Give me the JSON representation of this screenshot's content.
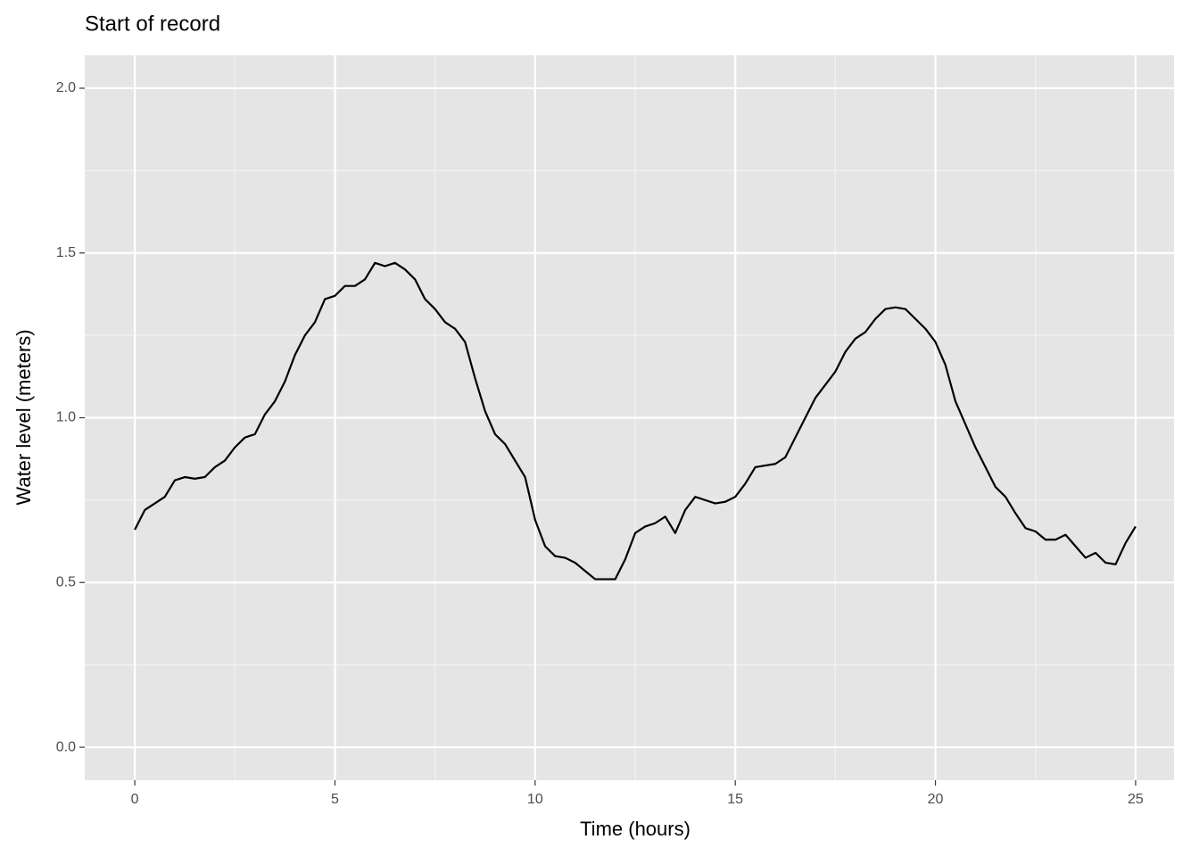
{
  "chart_data": {
    "type": "line",
    "title": "Start of record",
    "x_label": "Time (hours)",
    "y_label": "Water level (meters)",
    "x": [
      0,
      0.25,
      0.5,
      0.75,
      1,
      1.25,
      1.5,
      1.75,
      2,
      2.25,
      2.5,
      2.75,
      3,
      3.25,
      3.5,
      3.75,
      4,
      4.25,
      4.5,
      4.75,
      5,
      5.25,
      5.5,
      5.75,
      6,
      6.25,
      6.5,
      6.75,
      7,
      7.25,
      7.5,
      7.75,
      8,
      8.25,
      8.5,
      8.75,
      9,
      9.25,
      9.5,
      9.75,
      10,
      10.25,
      10.5,
      10.75,
      11,
      11.25,
      11.5,
      11.75,
      12,
      12.25,
      12.5,
      12.75,
      13,
      13.25,
      13.5,
      13.75,
      14,
      14.25,
      14.5,
      14.75,
      15,
      15.25,
      15.5,
      15.75,
      16,
      16.25,
      16.5,
      16.75,
      17,
      17.25,
      17.5,
      17.75,
      18,
      18.25,
      18.5,
      18.75,
      19,
      19.25,
      19.5,
      19.75,
      20,
      20.25,
      20.5,
      20.75,
      21,
      21.25,
      21.5,
      21.75,
      22,
      22.25,
      22.5,
      22.75,
      23,
      23.25,
      23.5,
      23.75,
      24,
      24.25,
      24.5,
      24.75,
      25
    ],
    "series": [
      {
        "color": "#000000",
        "values": [
          0.66,
          0.72,
          0.74,
          0.76,
          0.81,
          0.82,
          0.815,
          0.82,
          0.85,
          0.87,
          0.91,
          0.94,
          0.95,
          1.01,
          1.05,
          1.11,
          1.19,
          1.25,
          1.29,
          1.36,
          1.37,
          1.4,
          1.4,
          1.42,
          1.47,
          1.46,
          1.47,
          1.45,
          1.42,
          1.36,
          1.33,
          1.29,
          1.27,
          1.23,
          1.12,
          1.02,
          0.95,
          0.92,
          0.87,
          0.82,
          0.69,
          0.61,
          0.58,
          0.575,
          0.56,
          0.535,
          0.51,
          0.51,
          0.51,
          0.57,
          0.65,
          0.67,
          0.68,
          0.7,
          0.65,
          0.72,
          0.76,
          0.75,
          0.74,
          0.745,
          0.76,
          0.8,
          0.85,
          0.855,
          0.86,
          0.88,
          0.94,
          1.0,
          1.06,
          1.1,
          1.14,
          1.2,
          1.24,
          1.26,
          1.3,
          1.33,
          1.335,
          1.33,
          1.3,
          1.27,
          1.23,
          1.16,
          1.05,
          0.98,
          0.91,
          0.85,
          0.79,
          0.76,
          0.71,
          0.665,
          0.655,
          0.63,
          0.63,
          0.645,
          0.61,
          0.575,
          0.59,
          0.56,
          0.555,
          0.62,
          0.67
        ]
      }
    ],
    "xlim": [
      -1.25,
      25.96
    ],
    "ylim": [
      -0.1,
      2.1
    ],
    "xticks": [
      0,
      5,
      10,
      15,
      20,
      25
    ],
    "yticks": [
      {
        "value": 0,
        "label": "0.0"
      },
      {
        "value": 0.5,
        "label": "0.5"
      },
      {
        "value": 1,
        "label": "1.0"
      },
      {
        "value": 1.5,
        "label": "1.5"
      },
      {
        "value": 2,
        "label": "2.0"
      }
    ],
    "grid": true
  }
}
